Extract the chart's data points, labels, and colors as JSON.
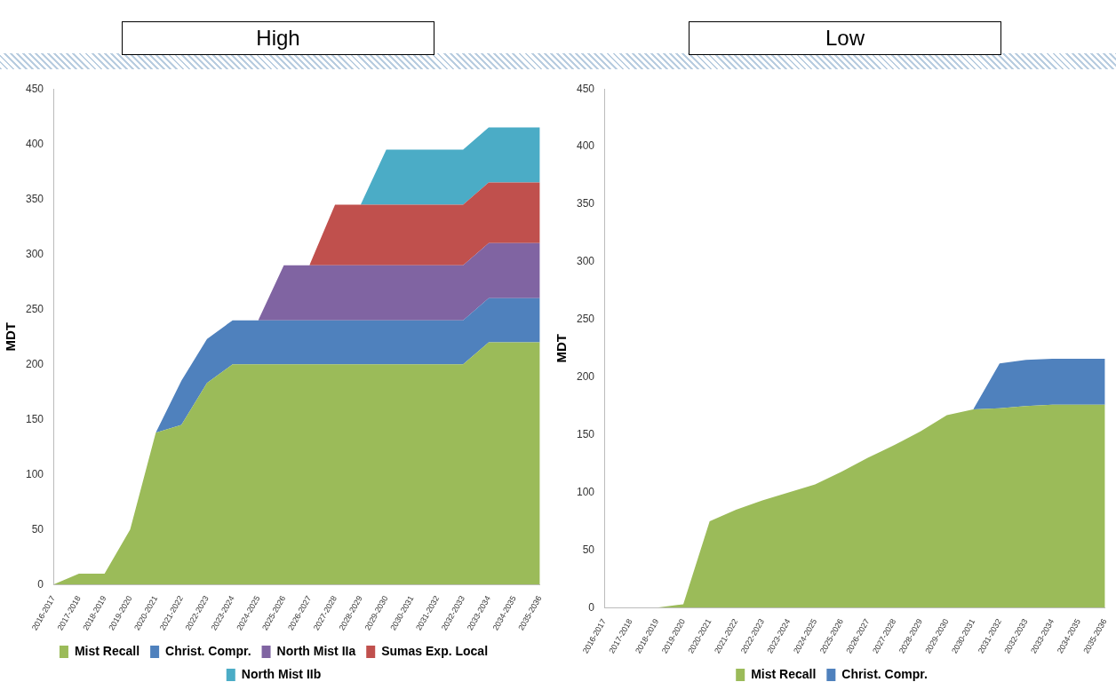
{
  "chart_data": [
    {
      "type": "area",
      "title": "High",
      "ylabel": "MDT",
      "stacked": true,
      "legend": "bottom",
      "grid": false,
      "marker": "none",
      "categories": [
        "2016-2017",
        "2017-2018",
        "2018-2019",
        "2019-2020",
        "2020-2021",
        "2021-2022",
        "2022-2023",
        "2023-2024",
        "2024-2025",
        "2025-2026",
        "2026-2027",
        "2027-2028",
        "2028-2029",
        "2029-2030",
        "2030-2031",
        "2031-2032",
        "2032-2033",
        "2033-2034",
        "2034-2035",
        "2035-2036"
      ],
      "ylim": [
        0,
        450
      ],
      "yticks": [
        0,
        50,
        100,
        150,
        200,
        250,
        300,
        350,
        400,
        450
      ],
      "series": [
        {
          "name": "Mist Recall",
          "color": "#9bbb59",
          "values": [
            0,
            10,
            10,
            50,
            138,
            145,
            183,
            200,
            200,
            200,
            200,
            200,
            200,
            200,
            200,
            200,
            200,
            220,
            220,
            220
          ]
        },
        {
          "name": "Christ. Compr.",
          "color": "#4f81bd",
          "values": [
            null,
            null,
            null,
            null,
            0,
            40,
            40,
            40,
            40,
            40,
            40,
            40,
            40,
            40,
            40,
            40,
            40,
            40,
            40,
            40
          ]
        },
        {
          "name": "North Mist IIa",
          "color": "#8064a2",
          "values": [
            null,
            null,
            null,
            null,
            null,
            null,
            null,
            null,
            0,
            50,
            50,
            50,
            50,
            50,
            50,
            50,
            50,
            50,
            50,
            50
          ]
        },
        {
          "name": "Sumas Exp. Local",
          "color": "#c0504d",
          "values": [
            null,
            null,
            null,
            null,
            null,
            null,
            null,
            null,
            null,
            null,
            0,
            55,
            55,
            55,
            55,
            55,
            55,
            55,
            55,
            55
          ]
        },
        {
          "name": "North Mist IIb",
          "color": "#4bacc6",
          "values": [
            null,
            null,
            null,
            null,
            null,
            null,
            null,
            null,
            null,
            null,
            null,
            null,
            0,
            50,
            50,
            50,
            50,
            50,
            50,
            50
          ]
        }
      ]
    },
    {
      "type": "area",
      "title": "Low",
      "ylabel": "MDT",
      "stacked": true,
      "legend": "bottom",
      "grid": false,
      "marker": "none",
      "categories": [
        "2016-2017",
        "2017-2018",
        "2018-2019",
        "2019-2020",
        "2020-2021",
        "2021-2022",
        "2022-2023",
        "2023-2024",
        "2024-2025",
        "2025-2026",
        "2026-2027",
        "2027-2028",
        "2028-2029",
        "2029-2030",
        "2030-2031",
        "2031-2032",
        "2032-2033",
        "2033-2034",
        "2034-2035",
        "2035-2036"
      ],
      "ylim": [
        0,
        450
      ],
      "yticks": [
        0,
        50,
        100,
        150,
        200,
        250,
        300,
        350,
        400,
        450
      ],
      "series": [
        {
          "name": "Mist Recall",
          "color": "#9bbb59",
          "values": [
            0,
            0,
            0,
            3,
            75,
            85,
            93,
            100,
            107,
            118,
            130,
            141,
            153,
            167,
            172,
            173,
            175,
            176,
            176,
            176
          ]
        },
        {
          "name": "Christ. Compr.",
          "color": "#4f81bd",
          "values": [
            null,
            null,
            null,
            null,
            null,
            null,
            null,
            null,
            null,
            null,
            null,
            null,
            null,
            null,
            0,
            39,
            40,
            40,
            40,
            40
          ]
        }
      ]
    }
  ]
}
